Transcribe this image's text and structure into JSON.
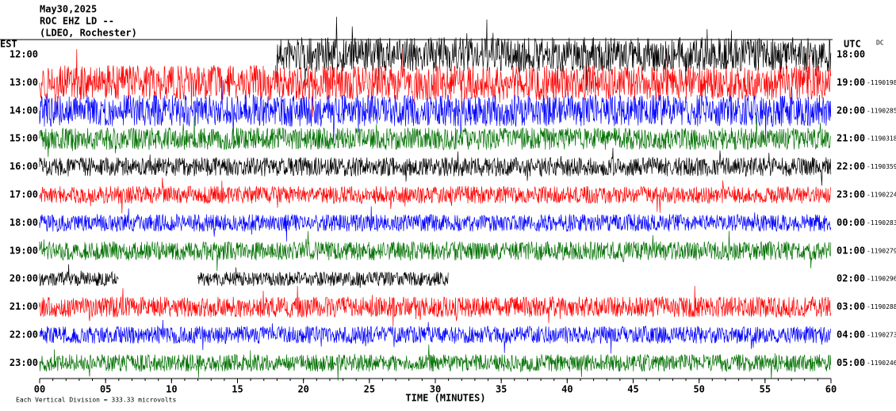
{
  "chart_data": {
    "type": "helicorder",
    "title": [
      "May30,2025",
      "ROC EHZ LD --",
      "(LDEO, Rochester)"
    ],
    "left_label": "EST",
    "right_label": "UTC",
    "corner_label": "DC",
    "xlabel": "TIME (MINUTES)",
    "footer": "Each Vertical Division =  333.33 microvolts",
    "xlim": [
      0,
      60
    ],
    "xticks": [
      {
        "value": 0,
        "label": "00"
      },
      {
        "value": 5,
        "label": "05"
      },
      10,
      15,
      20,
      25,
      30,
      35,
      40,
      45,
      50,
      55,
      60
    ],
    "rows": [
      {
        "est": "12:00",
        "utc": "18:00",
        "color": "#000000",
        "segments": [
          [
            18,
            60
          ]
        ]
      },
      {
        "est": "13:00",
        "utc": "19:00",
        "offset": "-1190198",
        "color": "#ff0000",
        "segments": [
          [
            0,
            60
          ]
        ]
      },
      {
        "est": "14:00",
        "utc": "20:00",
        "offset": "-1190285",
        "color": "#0000ff",
        "segments": [
          [
            0,
            60
          ]
        ]
      },
      {
        "est": "15:00",
        "utc": "21:00",
        "offset": "-1190318",
        "color": "#007000",
        "segments": [
          [
            0,
            60
          ]
        ]
      },
      {
        "est": "16:00",
        "utc": "22:00",
        "offset": "-1190359",
        "color": "#000000",
        "segments": [
          [
            0,
            60
          ]
        ]
      },
      {
        "est": "17:00",
        "utc": "23:00",
        "offset": "-1190224",
        "color": "#ff0000",
        "segments": [
          [
            0,
            60
          ]
        ]
      },
      {
        "est": "18:00",
        "utc": "00:00",
        "offset": "-1190283",
        "color": "#0000ff",
        "segments": [
          [
            0,
            60
          ]
        ]
      },
      {
        "est": "19:00",
        "utc": "01:00",
        "offset": "-1190279",
        "color": "#007000",
        "segments": [
          [
            0,
            60
          ]
        ]
      },
      {
        "est": "20:00",
        "utc": "02:00",
        "offset": "-1190296",
        "color": "#000000",
        "segments": [
          [
            0,
            6
          ],
          [
            12,
            31
          ]
        ]
      },
      {
        "est": "21:00",
        "utc": "03:00",
        "offset": "-1190288",
        "color": "#ff0000",
        "segments": [
          [
            0,
            60
          ]
        ]
      },
      {
        "est": "22:00",
        "utc": "04:00",
        "offset": "-1190273",
        "color": "#0000ff",
        "segments": [
          [
            0,
            60
          ]
        ]
      },
      {
        "est": "23:00",
        "utc": "05:00",
        "offset": "-1190246",
        "color": "#007000",
        "segments": [
          [
            0,
            60
          ]
        ]
      }
    ]
  }
}
